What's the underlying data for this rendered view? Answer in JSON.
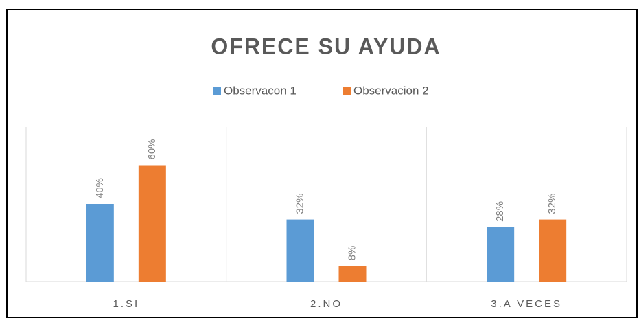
{
  "chart_data": {
    "type": "bar",
    "title": "OFRECE SU AYUDA",
    "categories": [
      "1.SI",
      "2.NO",
      "3.A VECES"
    ],
    "series": [
      {
        "name": "Observacon 1",
        "color": "#5b9bd5",
        "values": [
          40,
          32,
          28
        ],
        "value_labels": [
          "40%",
          "32%",
          "28%"
        ]
      },
      {
        "name": "Observacion 2",
        "color": "#ed7d31",
        "values": [
          60,
          8,
          32
        ],
        "value_labels": [
          "60%",
          "8%",
          "32%"
        ]
      }
    ],
    "ylim": [
      0,
      100
    ],
    "legend": "top"
  }
}
